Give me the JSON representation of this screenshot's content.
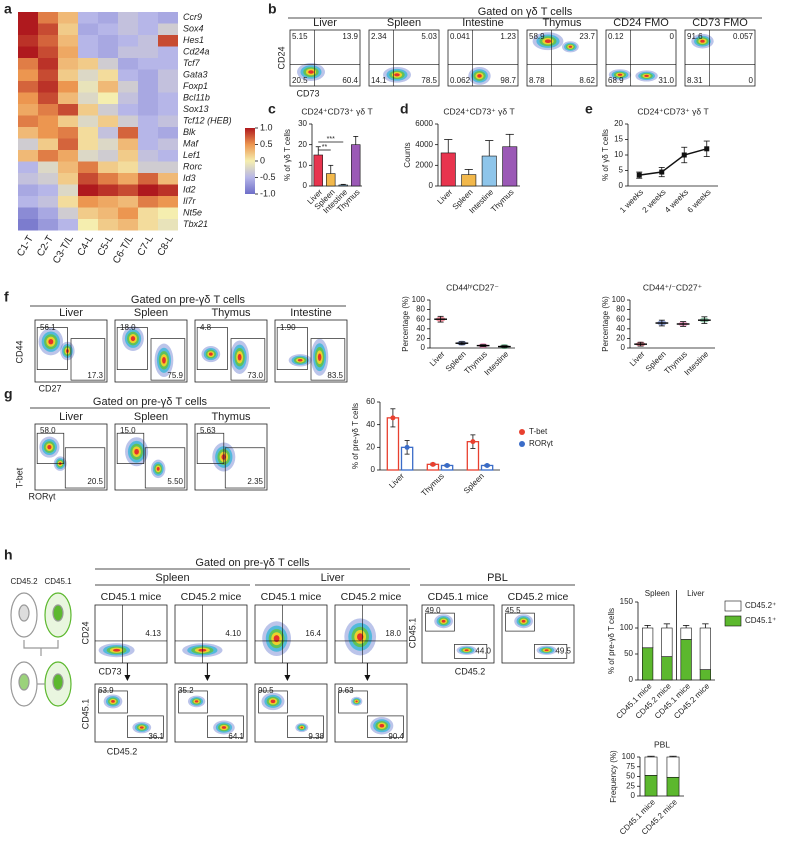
{
  "panel_letters": [
    "a",
    "b",
    "c",
    "d",
    "e",
    "f",
    "g",
    "h"
  ],
  "heatmap": {
    "rows": [
      "Ccr9",
      "Sox4",
      "Hes1",
      "Cd24a",
      "Tcf7",
      "Gata3",
      "Foxp1",
      "Bcl11b",
      "Sox13",
      "Tcf12 (HEB)",
      "Blk",
      "Maf",
      "Lef1",
      "Rorc",
      "Id3",
      "Id2",
      "Il7r",
      "Nt5e",
      "Tbx21"
    ],
    "columns": [
      "C1-T",
      "C2-T",
      "C3-T/L",
      "C4-L",
      "C5-L",
      "C6-T/L",
      "C7-L",
      "C8-L"
    ],
    "values": [
      [
        1.0,
        0.6,
        0.3,
        -0.5,
        -0.6,
        -0.4,
        -0.5,
        -0.6
      ],
      [
        1.0,
        0.8,
        0.2,
        -0.6,
        -0.5,
        -0.4,
        -0.5,
        -0.3
      ],
      [
        0.9,
        0.7,
        0.3,
        -0.5,
        -0.6,
        -0.5,
        -0.4,
        0.8
      ],
      [
        1.0,
        0.8,
        0.4,
        -0.5,
        -0.6,
        -0.4,
        -0.4,
        -0.5
      ],
      [
        0.6,
        0.9,
        0.3,
        0.2,
        -0.3,
        -0.6,
        -0.5,
        -0.5
      ],
      [
        0.5,
        0.8,
        0.2,
        -0.2,
        0.1,
        -0.5,
        -0.6,
        -0.4
      ],
      [
        0.7,
        0.9,
        0.5,
        -0.1,
        0.3,
        -0.3,
        -0.6,
        -0.4
      ],
      [
        0.5,
        0.8,
        0.3,
        -0.2,
        0.0,
        -0.4,
        -0.6,
        -0.5
      ],
      [
        0.4,
        0.6,
        0.8,
        0.2,
        -0.3,
        -0.5,
        -0.6,
        -0.5
      ],
      [
        0.6,
        0.5,
        0.2,
        -0.2,
        0.2,
        -0.3,
        -0.5,
        -0.4
      ],
      [
        0.3,
        0.5,
        0.6,
        0.1,
        -0.4,
        0.7,
        -0.5,
        -0.6
      ],
      [
        -0.3,
        0.2,
        0.7,
        0.1,
        -0.2,
        0.3,
        -0.5,
        -0.4
      ],
      [
        0.3,
        0.6,
        0.4,
        -0.2,
        -0.3,
        0.2,
        -0.4,
        -0.5
      ],
      [
        -0.5,
        -0.2,
        0.3,
        0.6,
        0.2,
        0.1,
        -0.3,
        -0.3
      ],
      [
        -0.4,
        -0.3,
        0.2,
        0.8,
        0.6,
        0.4,
        0.7,
        0.3
      ],
      [
        -0.6,
        -0.5,
        -0.2,
        1.0,
        0.9,
        0.8,
        1.0,
        0.9
      ],
      [
        -0.5,
        -0.4,
        0.1,
        0.5,
        0.4,
        0.3,
        0.6,
        0.5
      ],
      [
        -0.8,
        -0.6,
        -0.3,
        0.2,
        0.3,
        0.5,
        0.1,
        0.0
      ],
      [
        -0.9,
        -0.7,
        -0.5,
        0.0,
        0.2,
        0.3,
        0.1,
        -0.1
      ]
    ],
    "clim": [
      -1,
      1
    ],
    "colorbar_ticks": [
      {
        "value": 1,
        "label": "1.0"
      },
      0.5,
      0,
      -0.5,
      {
        "value": -1,
        "label": "-1.0"
      }
    ]
  },
  "flow_b": {
    "title": "Gated on γδ T cells",
    "x_label": "CD73",
    "y_label": "CD24",
    "plots": [
      {
        "name": "Liver",
        "gates": [
          "5.15",
          "13.9",
          "20.5",
          "60.4"
        ]
      },
      {
        "name": "Spleen",
        "gates": [
          "2.34",
          "5.03",
          "14.1",
          "78.5"
        ]
      },
      {
        "name": "Intestine",
        "gates": [
          "0.041",
          "1.23",
          "0.062",
          "98.7"
        ]
      },
      {
        "name": "Thymus",
        "gates": [
          "58.9",
          "23.7",
          "8.78",
          "8.62"
        ]
      },
      {
        "name": "CD24 FMO",
        "gates": [
          "0.12",
          "0",
          "68.9",
          "31.0"
        ]
      },
      {
        "name": "CD73 FMO",
        "gates": [
          "91.6",
          "0.057",
          "8.31",
          "0"
        ]
      }
    ]
  },
  "bar_c": {
    "type": "bar",
    "title": "CD24⁺CD73⁺ γδ T",
    "y_label": "% of γδ T cells",
    "categories": [
      "Liver",
      "Spleen",
      "Intestine",
      "Thymus"
    ],
    "values": [
      15,
      6,
      0.5,
      20
    ],
    "errors": [
      4,
      4,
      0.3,
      4
    ],
    "colors": [
      "#e8344e",
      "#f2b84b",
      "#8ec5ea",
      "#9b59b6"
    ],
    "ylim": [
      0,
      30
    ],
    "yticks": [
      0,
      10,
      20,
      30
    ],
    "significance": [
      "***",
      "**"
    ]
  },
  "bar_d": {
    "type": "bar",
    "title": "CD24⁺CD73⁺ γδ T",
    "y_label": "Counts",
    "categories": [
      "Liver",
      "Spleen",
      "Intestine",
      "Thymus"
    ],
    "values": [
      3200,
      1100,
      2900,
      3800
    ],
    "errors": [
      1300,
      500,
      1500,
      1200
    ],
    "colors": [
      "#e8344e",
      "#f2b84b",
      "#8ec5ea",
      "#9b59b6"
    ],
    "ylim": [
      0,
      6000
    ],
    "yticks": [
      0,
      2000,
      4000,
      6000
    ]
  },
  "line_e": {
    "type": "line",
    "title": "CD24⁺CD73⁺ γδ T",
    "y_label": "% of γδ T cells",
    "categories": [
      "1 weeks",
      "2 weeks",
      "4 weeks",
      "6 weeks"
    ],
    "values": [
      3.5,
      4.5,
      10,
      12
    ],
    "errors": [
      1,
      1.5,
      2.5,
      2.5
    ],
    "color": "#111111",
    "ylim": [
      0,
      20
    ],
    "yticks": [
      0,
      5,
      10,
      15,
      20
    ]
  },
  "flow_f": {
    "title": "Gated on pre-γδ T cells",
    "x_label": "CD27",
    "y_label": "CD44",
    "plots": [
      {
        "name": "Liver",
        "gates": [
          "56.1",
          "17.3"
        ]
      },
      {
        "name": "Spleen",
        "gates": [
          "18.0",
          "75.9"
        ]
      },
      {
        "name": "Thymus",
        "gates": [
          "4.8",
          "73.0"
        ]
      },
      {
        "name": "Intestine",
        "gates": [
          "1.90",
          "83.5"
        ]
      }
    ]
  },
  "dot_f1": {
    "type": "dot",
    "title": "CD44ʰⁱCD27⁻",
    "y_label": "Percentage (%)",
    "categories": [
      "Liver",
      "Spleen",
      "Thymus",
      "Intestine"
    ],
    "values": [
      60,
      10,
      5,
      3
    ],
    "errors": [
      6,
      3,
      2,
      2
    ],
    "colors": [
      "#e8344e",
      "#3a5bb8",
      "#e05a9a",
      "#2e8b57"
    ],
    "ylim": [
      0,
      100
    ],
    "yticks": [
      0,
      20,
      40,
      60,
      80,
      100
    ]
  },
  "dot_f2": {
    "type": "dot",
    "title": "CD44⁺/⁻CD27⁺",
    "y_label": "Percentage (%)",
    "categories": [
      "Liver",
      "Spleen",
      "Thymus",
      "Intestine"
    ],
    "values": [
      8,
      52,
      50,
      58
    ],
    "errors": [
      4,
      6,
      5,
      7
    ],
    "colors": [
      "#e8344e",
      "#3a5bb8",
      "#e05a9a",
      "#2e8b57"
    ],
    "ylim": [
      0,
      100
    ],
    "yticks": [
      0,
      20,
      40,
      60,
      80,
      100
    ]
  },
  "flow_g": {
    "title": "Gated on pre-γδ T cells",
    "x_label": "RORγt",
    "y_label": "T-bet",
    "plots": [
      {
        "name": "Liver",
        "gates": [
          "58.0",
          "20.5"
        ]
      },
      {
        "name": "Spleen",
        "gates": [
          "15.0",
          "5.50"
        ]
      },
      {
        "name": "Thymus",
        "gates": [
          "5.63",
          "2.35"
        ]
      }
    ]
  },
  "bar_g": {
    "type": "grouped_bar",
    "y_label": "% of pre-γδ T cells",
    "categories": [
      "Liver",
      "Thymus",
      "Spleen"
    ],
    "series": [
      {
        "name": "T-bet",
        "color": "#e8402f",
        "values": [
          46,
          5,
          25
        ],
        "errors": [
          8,
          1,
          6
        ]
      },
      {
        "name": "RORγt",
        "color": "#3a6cc8",
        "values": [
          20,
          4,
          4
        ],
        "errors": [
          6,
          1,
          1
        ]
      }
    ],
    "ylim": [
      0,
      60
    ],
    "yticks": [
      0,
      20,
      40,
      60
    ]
  },
  "flow_h": {
    "title": "Gated on pre-γδ T cells",
    "groups": [
      "Spleen",
      "Liver",
      "PBL"
    ],
    "donors": [
      "CD45.2",
      "CD45.1"
    ],
    "top_x_label": "CD73",
    "top_y_label": "CD24",
    "bottom_x_label": "CD45.2",
    "bottom_y_label": "CD45.1",
    "pbl_x_label": "CD45.2",
    "pbl_y_label": "CD45.1",
    "top": [
      {
        "name": "CD45.1 mice",
        "gates": [
          "4.13"
        ]
      },
      {
        "name": "CD45.2 mice",
        "gates": [
          "4.10"
        ]
      },
      {
        "name": "CD45.1 mice",
        "gates": [
          "16.4"
        ]
      },
      {
        "name": "CD45.2 mice",
        "gates": [
          "18.0"
        ]
      }
    ],
    "pbl": [
      {
        "name": "CD45.1 mice",
        "gates": [
          "49.0",
          "44.0"
        ]
      },
      {
        "name": "CD45.2 mice",
        "gates": [
          "45.5",
          "49.5"
        ]
      }
    ],
    "bottom": [
      {
        "gates": [
          "63.9",
          "36.1"
        ]
      },
      {
        "gates": [
          "35.2",
          "64.1"
        ]
      },
      {
        "gates": [
          "90.5",
          "9.38"
        ]
      },
      {
        "gates": [
          "9.63",
          "90.4"
        ]
      }
    ]
  },
  "stack_h": {
    "type": "stacked_bar",
    "groups": [
      "Spleen",
      "Liver"
    ],
    "y_label": "% of pre-γδ T cells",
    "categories": [
      "CD45.1 mice",
      "CD45.2 mice",
      "CD45.1 mice",
      "CD45.2 mice"
    ],
    "series": [
      {
        "name": "CD45.2⁺",
        "color": "#ffffff",
        "values": [
          38,
          55,
          22,
          80
        ],
        "errors": [
          5,
          8,
          5,
          8
        ]
      },
      {
        "name": "CD45.1⁺",
        "color": "#5cb82e",
        "values": [
          62,
          45,
          78,
          20
        ],
        "errors": [
          4,
          14,
          6,
          8
        ]
      }
    ],
    "ylim": [
      0,
      150
    ],
    "yticks": [
      0,
      50,
      100,
      150
    ]
  },
  "stack_pbl": {
    "type": "stacked_bar",
    "title": "PBL",
    "y_label": "Frequency (%)",
    "categories": [
      "CD45.1 mice",
      "CD45.2 mice"
    ],
    "series": [
      {
        "name": "CD45.2⁺",
        "color": "#ffffff",
        "values": [
          47,
          52
        ],
        "errors": [
          2,
          2
        ]
      },
      {
        "name": "CD45.1⁺",
        "color": "#5cb82e",
        "values": [
          53,
          48
        ],
        "errors": [
          2,
          2
        ]
      }
    ],
    "ylim": [
      0,
      100
    ],
    "yticks": [
      0,
      25,
      50,
      75,
      100
    ]
  }
}
